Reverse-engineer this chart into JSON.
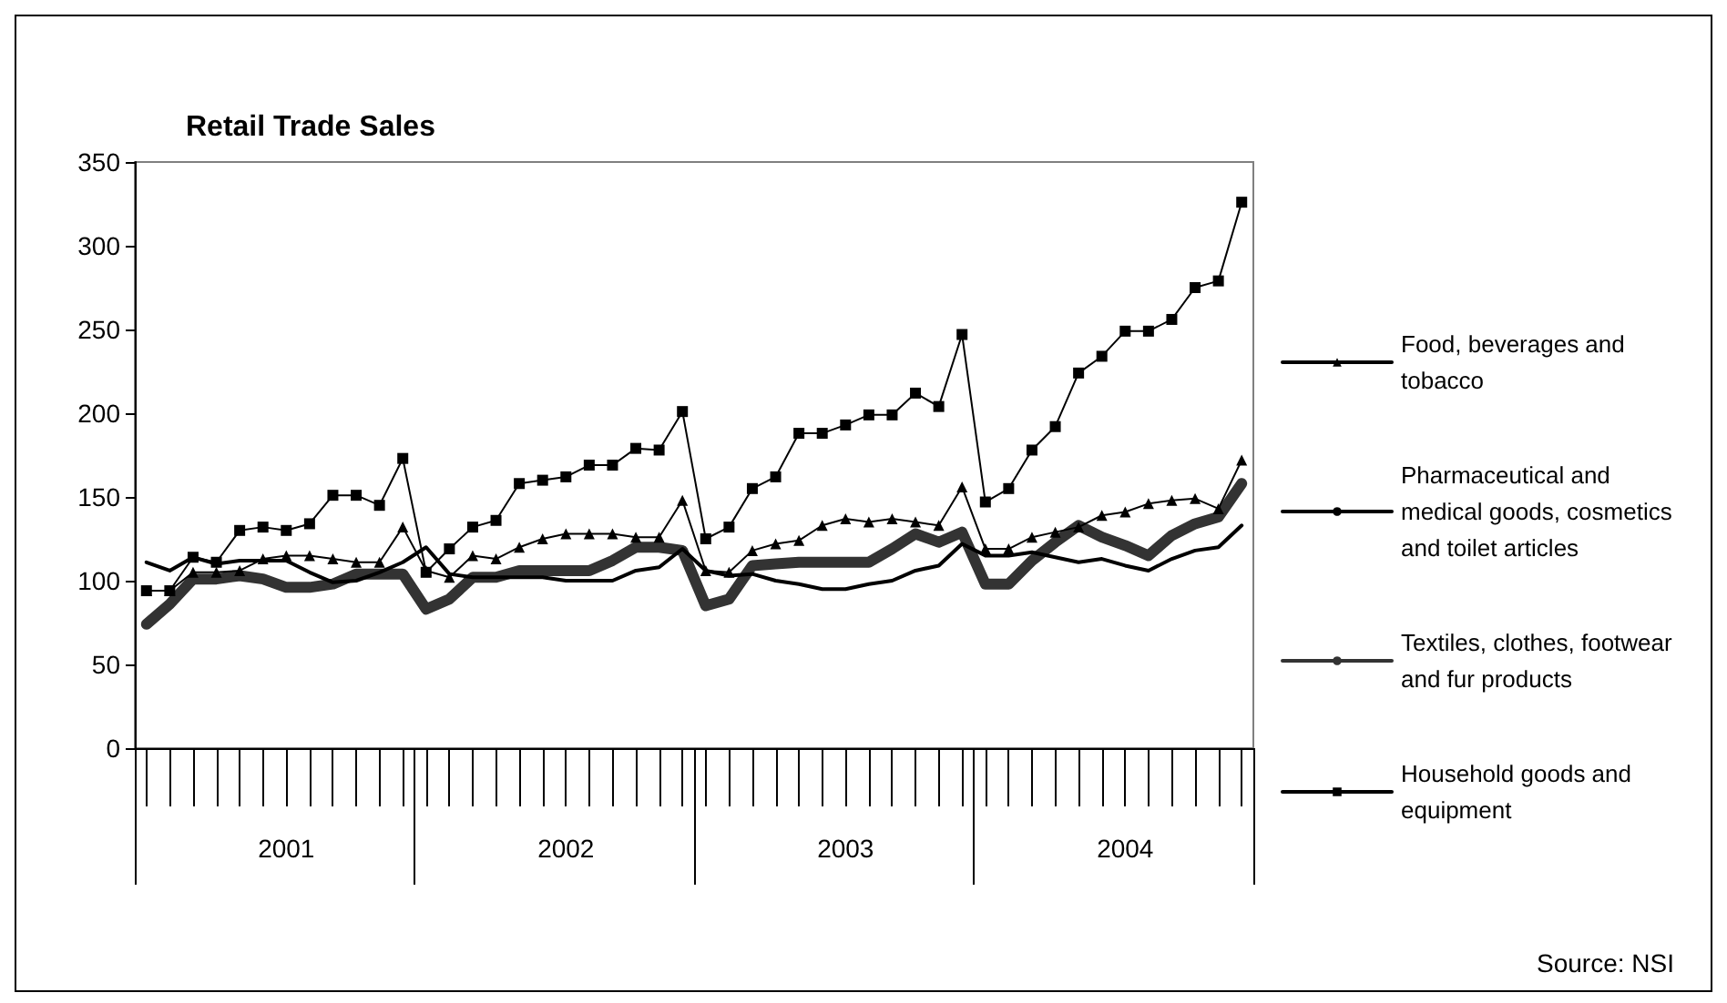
{
  "chart_data": {
    "type": "line",
    "title": "Retail Trade Sales",
    "categories": [
      null,
      null,
      null,
      null,
      null,
      null,
      "2001",
      null,
      null,
      null,
      null,
      null,
      null,
      null,
      null,
      null,
      null,
      null,
      "2002",
      null,
      null,
      null,
      null,
      null,
      null,
      null,
      null,
      null,
      null,
      null,
      "2003",
      null,
      null,
      null,
      null,
      null,
      null,
      null,
      null,
      null,
      null,
      null,
      "2004",
      null,
      null,
      null,
      null,
      null
    ],
    "series": [
      {
        "name": "Food, beverages and tobacco",
        "color": "#000000",
        "marker": "triangle",
        "values": [
          94,
          94,
          105,
          105,
          106,
          113,
          115,
          115,
          113,
          111,
          111,
          132,
          106,
          102,
          115,
          113,
          120,
          125,
          128,
          128,
          128,
          126,
          126,
          148,
          106,
          105,
          118,
          122,
          124,
          133,
          137,
          135,
          137,
          135,
          133,
          156,
          119,
          119,
          126,
          129,
          132,
          139,
          141,
          146,
          148,
          149,
          143,
          172
        ]
      },
      {
        "name": "Pharmaceutical and medical goods, cosmetics and toilet articles",
        "color": "#000000",
        "marker": "none",
        "values": [
          111,
          106,
          114,
          110,
          112,
          112,
          112,
          105,
          99,
          100,
          105,
          111,
          120,
          104,
          102,
          102,
          102,
          102,
          100,
          100,
          100,
          106,
          108,
          119,
          106,
          103,
          104,
          100,
          98,
          95,
          95,
          98,
          100,
          106,
          109,
          122,
          115,
          115,
          117,
          114,
          111,
          113,
          109,
          106,
          113,
          118,
          120,
          133
        ]
      },
      {
        "name": "Textiles, clothes, footwear and fur products",
        "color": "#333333",
        "marker": "none",
        "values": [
          74,
          86,
          101,
          101,
          103,
          101,
          96,
          96,
          98,
          104,
          104,
          104,
          83,
          89,
          102,
          102,
          106,
          106,
          106,
          106,
          112,
          120,
          120,
          118,
          85,
          89,
          109,
          110,
          111,
          111,
          111,
          111,
          119,
          128,
          123,
          129,
          98,
          98,
          112,
          123,
          133,
          126,
          121,
          115,
          127,
          134,
          138,
          158
        ]
      },
      {
        "name": "Household goods and equipment",
        "color": "#000000",
        "marker": "square",
        "values": [
          94,
          94,
          114,
          111,
          130,
          132,
          130,
          134,
          151,
          151,
          145,
          173,
          105,
          119,
          132,
          136,
          158,
          160,
          162,
          169,
          169,
          179,
          178,
          201,
          125,
          132,
          155,
          162,
          188,
          188,
          193,
          199,
          199,
          212,
          204,
          247,
          147,
          155,
          178,
          192,
          224,
          234,
          249,
          249,
          256,
          275,
          279,
          326
        ]
      }
    ],
    "ylim": [
      0,
      350
    ],
    "yticks": [
      0,
      50,
      100,
      150,
      200,
      250,
      300,
      350
    ],
    "grid": false,
    "legend": "right",
    "line_style": "solid",
    "annotations": [
      "Source: NSI"
    ]
  }
}
